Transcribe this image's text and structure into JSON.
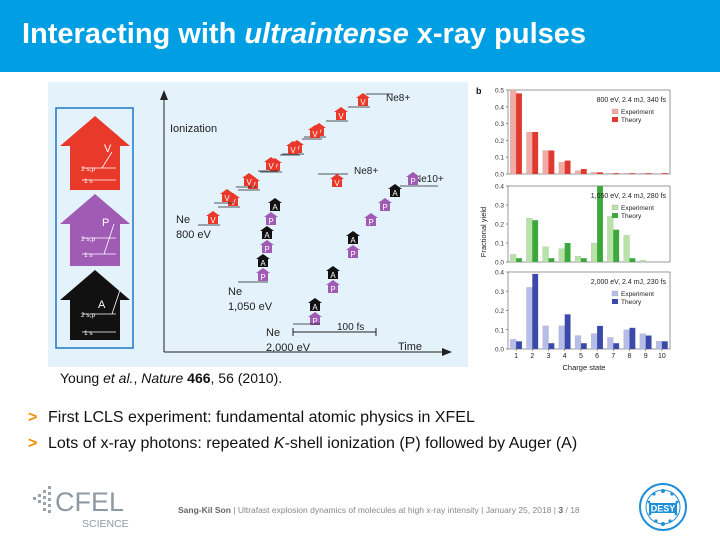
{
  "slide": {
    "title_prefix": "Interacting with ",
    "title_emph": "ultraintense",
    "title_suffix": " x-ray pulses"
  },
  "figure_a": {
    "ionization_label": "Ionization",
    "time_label": "Time",
    "time_scale": "100 fs",
    "ne_label": "Ne",
    "energy_800": "800 eV",
    "energy_1050": "1,050 eV",
    "energy_2000": "2,000 eV",
    "ne8_top": "Ne8+",
    "ne8_mid": "Ne8+",
    "ne10": "Ne10+",
    "letter_v": "V",
    "letter_p": "P",
    "letter_a": "A",
    "shell_2sp": "2 s,p",
    "shell_1s": "1 s",
    "colors": {
      "valence": "#e8392a",
      "photo": "#a05bb5",
      "auger": "#111111"
    }
  },
  "figure_b": {
    "panel_letter": "b",
    "y_axis_label": "Fractional yield",
    "x_axis_label": "Charge state",
    "x_ticks": [
      "1",
      "2",
      "3",
      "4",
      "5",
      "6",
      "7",
      "8",
      "9",
      "10"
    ],
    "legend_experiment": "Experiment",
    "legend_theory": "Theory"
  },
  "chart_data": [
    {
      "type": "bar",
      "title": "800 eV, 2.4 mJ, 340 fs",
      "categories": [
        "1",
        "2",
        "3",
        "4",
        "5",
        "6",
        "7",
        "8",
        "9",
        "10"
      ],
      "ylim": [
        0,
        0.5
      ],
      "yticks": [
        "0.0",
        "0.1",
        "0.2",
        "0.3",
        "0.4",
        "0.5"
      ],
      "series": [
        {
          "name": "Experiment",
          "color": "#f4aaa4",
          "values": [
            0.5,
            0.25,
            0.14,
            0.07,
            0.02,
            0.01,
            0.005,
            0.005,
            0.005,
            0.0
          ]
        },
        {
          "name": "Theory",
          "color": "#e03a30",
          "values": [
            0.48,
            0.25,
            0.14,
            0.08,
            0.03,
            0.01,
            0.005,
            0.005,
            0.005,
            0.005
          ]
        }
      ]
    },
    {
      "type": "bar",
      "title": "1,050 eV, 2.4 mJ, 280 fs",
      "categories": [
        "1",
        "2",
        "3",
        "4",
        "5",
        "6",
        "7",
        "8",
        "9",
        "10"
      ],
      "ylim": [
        0,
        0.4
      ],
      "yticks": [
        "0.0",
        "0.1",
        "0.2",
        "0.3",
        "0.4"
      ],
      "series": [
        {
          "name": "Experiment",
          "color": "#b8e3a8",
          "values": [
            0.04,
            0.23,
            0.08,
            0.07,
            0.03,
            0.1,
            0.24,
            0.14,
            0.01,
            0.0
          ]
        },
        {
          "name": "Theory",
          "color": "#3ca83c",
          "values": [
            0.02,
            0.22,
            0.02,
            0.1,
            0.02,
            0.4,
            0.17,
            0.02,
            0.0,
            0.0
          ]
        }
      ]
    },
    {
      "type": "bar",
      "title": "2,000 eV, 2.4 mJ, 230 fs",
      "categories": [
        "1",
        "2",
        "3",
        "4",
        "5",
        "6",
        "7",
        "8",
        "9",
        "10"
      ],
      "ylim": [
        0,
        0.4
      ],
      "yticks": [
        "0.0",
        "0.1",
        "0.2",
        "0.3",
        "0.4"
      ],
      "series": [
        {
          "name": "Experiment",
          "color": "#b5bde8",
          "values": [
            0.05,
            0.32,
            0.12,
            0.12,
            0.07,
            0.08,
            0.06,
            0.1,
            0.08,
            0.04
          ]
        },
        {
          "name": "Theory",
          "color": "#3b4aa8",
          "values": [
            0.04,
            0.39,
            0.03,
            0.18,
            0.03,
            0.12,
            0.03,
            0.11,
            0.07,
            0.04
          ]
        }
      ]
    }
  ],
  "citation": {
    "authors": "Young ",
    "etal": "et al.",
    "sep": ", ",
    "journal": "Nature",
    "space": " ",
    "volume": "466",
    "rest": ", 56 (2010)."
  },
  "bullets": {
    "marker": ">",
    "b1": "First LCLS experiment: fundamental atomic physics in XFEL",
    "b2_pre": "Lots of x-ray photons: repeated ",
    "b2_emph": "K",
    "b2_post": "-shell ionization (P) followed by Auger (A)"
  },
  "footer": {
    "author": "Sang-Kil Son",
    "sep1": "  |  ",
    "talk": "Ultrafast explosion dynamics of molecules at high x-ray intensity",
    "date": "January 25, 2018",
    "page": "3",
    "slash": " / ",
    "total": "18",
    "logo_main": "CFEL",
    "logo_sub": "SCIENCE",
    "desy": "DESY"
  }
}
